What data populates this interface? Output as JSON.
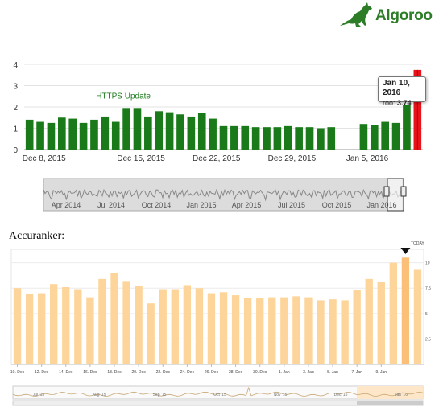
{
  "brand": {
    "name": "Algoroo",
    "color": "#2d7d28"
  },
  "accuranker_title": "Accuranker:",
  "chart_data": [
    {
      "type": "bar",
      "name": "algoroo",
      "ylim": [
        0,
        4
      ],
      "yticks": [
        "0",
        "1",
        "2",
        "3",
        "4"
      ],
      "xtick_labels": [
        "Dec 8, 2015",
        "Dec 15, 2015",
        "Dec 22, 2015",
        "Dec 29, 2015",
        "Jan 5, 2016"
      ],
      "xtick_index": [
        0,
        9,
        16,
        23,
        30
      ],
      "values": [
        1.4,
        1.3,
        1.25,
        1.5,
        1.45,
        1.25,
        1.4,
        1.55,
        1.3,
        1.95,
        1.95,
        1.55,
        1.8,
        1.75,
        1.65,
        1.55,
        1.7,
        1.45,
        1.1,
        1.1,
        1.1,
        1.05,
        1.05,
        1.05,
        1.1,
        1.05,
        1.05,
        1.0,
        1.05,
        null,
        null,
        1.2,
        1.15,
        1.3,
        1.25,
        2.1,
        3.74
      ],
      "highlight_index": 36,
      "bar_color": "#1a7a1a",
      "highlight_color": "#e8141b",
      "annotation": {
        "text": "HTTPS Update",
        "index": 9
      },
      "tooltip": {
        "title": "Jan 10, 2016",
        "series": "roo",
        "value": "3.74"
      },
      "navigator_labels": [
        "Apr 2014",
        "Jul 2014",
        "Oct 2014",
        "Jan 2015",
        "Apr 2015",
        "Jul 2015",
        "Oct 2015",
        "Jan 2016"
      ]
    },
    {
      "type": "bar",
      "name": "accuranker",
      "ylim": [
        0,
        11
      ],
      "yticks": [
        "2.5",
        "5",
        "7.5",
        "10"
      ],
      "ytick_values": [
        2.5,
        5,
        7.5,
        10
      ],
      "xtick_labels": [
        "10. Dec",
        "12. Dec",
        "14. Dec",
        "16. Dec",
        "18. Dec",
        "20. Dec",
        "22. Dec",
        "24. Dec",
        "26. Dec",
        "28. Dec",
        "30. Dec",
        "1. Jan",
        "3. Jan",
        "5. Jan",
        "7. Jan",
        "9. Jan"
      ],
      "values": [
        7.5,
        6.9,
        7.0,
        7.9,
        7.6,
        7.4,
        6.6,
        8.4,
        9.0,
        8.2,
        7.7,
        6.0,
        7.4,
        7.4,
        7.8,
        7.5,
        7.0,
        7.1,
        6.8,
        6.5,
        6.5,
        6.6,
        6.6,
        6.7,
        6.6,
        6.3,
        6.4,
        6.3,
        7.3,
        8.4,
        8.1,
        10.0,
        10.5,
        9.3
      ],
      "bar_color": "#fdd59a",
      "highlight_color": "#fbbf77",
      "highlight_index": 32,
      "today_label": "TODAY",
      "navigator_labels": [
        "Jul '15",
        "Aug '15",
        "Sep '15",
        "Oct '15",
        "Nov '15",
        "Dec '15",
        "Jan '16"
      ]
    }
  ]
}
